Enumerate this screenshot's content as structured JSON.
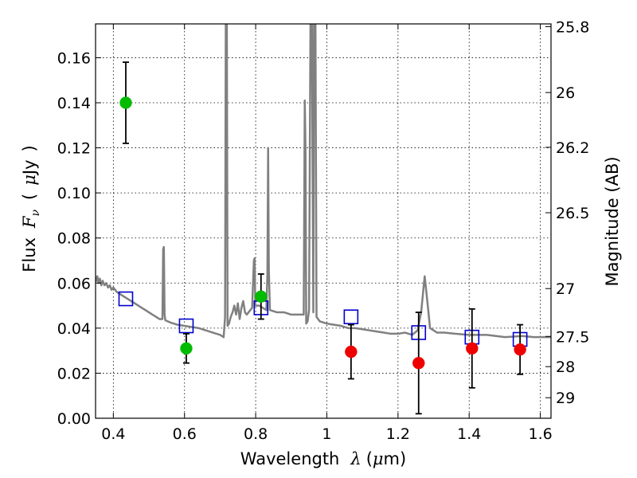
{
  "chart_data": {
    "type": "scatter",
    "title": "",
    "xlabel": {
      "prefix": "Wavelength",
      "symbol": "λ",
      "unit_open": "(",
      "unit_mu": "μ",
      "unit_rest": "m)"
    },
    "ylabel": {
      "prefix": "Flux",
      "symbol": "F",
      "subscript": "ν",
      "unit_open": "(",
      "unit_mu": "μ",
      "unit_rest": "Jy",
      "unit_close": ")"
    },
    "y2label": "Magnitude (AB)",
    "xlim": [
      0.35,
      1.63
    ],
    "ylim": [
      0.0,
      0.175
    ],
    "xticks": [
      0.4,
      0.6,
      0.8,
      1.0,
      1.2,
      1.4,
      1.6
    ],
    "xtick_labels": [
      "0.4",
      "0.6",
      "0.8",
      "1",
      "1.2",
      "1.4",
      "1.6"
    ],
    "yticks": [
      0.0,
      0.02,
      0.04,
      0.06,
      0.08,
      0.1,
      0.12,
      0.14,
      0.16
    ],
    "ytick_labels": [
      "0.00",
      "0.02",
      "0.04",
      "0.06",
      "0.08",
      "0.10",
      "0.12",
      "0.14",
      "0.16"
    ],
    "y2ticks": [
      {
        "mag": 25.8,
        "label": "25.8"
      },
      {
        "mag": 26.0,
        "label": "26"
      },
      {
        "mag": 26.2,
        "label": "26.2"
      },
      {
        "mag": 26.5,
        "label": "26.5"
      },
      {
        "mag": 27.0,
        "label": "27"
      },
      {
        "mag": 27.5,
        "label": "27.5"
      },
      {
        "mag": 28.0,
        "label": "28"
      },
      {
        "mag": 29.0,
        "label": "29"
      }
    ],
    "grid": true,
    "colors": {
      "model": "#808080",
      "green": "#00bb00",
      "red": "#ee0000",
      "square": "#0000cc",
      "error": "#000000"
    },
    "series": [
      {
        "kind": "model_spectrum",
        "points": [
          [
            0.35,
            0.063
          ],
          [
            0.352,
            0.061
          ],
          [
            0.355,
            0.063
          ],
          [
            0.358,
            0.06
          ],
          [
            0.362,
            0.062
          ],
          [
            0.366,
            0.059
          ],
          [
            0.37,
            0.061
          ],
          [
            0.375,
            0.059
          ],
          [
            0.38,
            0.06
          ],
          [
            0.385,
            0.058
          ],
          [
            0.39,
            0.059
          ],
          [
            0.395,
            0.057
          ],
          [
            0.4,
            0.058
          ],
          [
            0.41,
            0.056
          ],
          [
            0.42,
            0.055
          ],
          [
            0.43,
            0.054
          ],
          [
            0.44,
            0.053
          ],
          [
            0.45,
            0.052
          ],
          [
            0.46,
            0.051
          ],
          [
            0.47,
            0.05
          ],
          [
            0.48,
            0.049
          ],
          [
            0.49,
            0.048
          ],
          [
            0.5,
            0.047
          ],
          [
            0.51,
            0.046
          ],
          [
            0.52,
            0.045
          ],
          [
            0.53,
            0.044
          ],
          [
            0.538,
            0.044
          ],
          [
            0.54,
            0.075
          ],
          [
            0.542,
            0.076
          ],
          [
            0.544,
            0.046
          ],
          [
            0.546,
            0.0435
          ],
          [
            0.56,
            0.0425
          ],
          [
            0.58,
            0.0415
          ],
          [
            0.6,
            0.041
          ],
          [
            0.62,
            0.0405
          ],
          [
            0.64,
            0.04
          ],
          [
            0.66,
            0.039
          ],
          [
            0.68,
            0.038
          ],
          [
            0.7,
            0.037
          ],
          [
            0.71,
            0.036
          ],
          [
            0.714,
            0.045
          ],
          [
            0.716,
            0.175
          ],
          [
            0.719,
            0.175
          ],
          [
            0.721,
            0.041
          ],
          [
            0.725,
            0.042
          ],
          [
            0.73,
            0.045
          ],
          [
            0.735,
            0.047
          ],
          [
            0.74,
            0.05
          ],
          [
            0.745,
            0.046
          ],
          [
            0.75,
            0.051
          ],
          [
            0.755,
            0.044
          ],
          [
            0.76,
            0.049
          ],
          [
            0.765,
            0.052
          ],
          [
            0.77,
            0.047
          ],
          [
            0.775,
            0.046
          ],
          [
            0.78,
            0.047
          ],
          [
            0.785,
            0.048
          ],
          [
            0.79,
            0.049
          ],
          [
            0.795,
            0.07
          ],
          [
            0.797,
            0.071
          ],
          [
            0.799,
            0.05
          ],
          [
            0.81,
            0.05
          ],
          [
            0.82,
            0.049
          ],
          [
            0.83,
            0.048
          ],
          [
            0.833,
            0.064
          ],
          [
            0.835,
            0.12
          ],
          [
            0.837,
            0.066
          ],
          [
            0.84,
            0.048
          ],
          [
            0.86,
            0.047
          ],
          [
            0.88,
            0.047
          ],
          [
            0.9,
            0.046
          ],
          [
            0.92,
            0.046
          ],
          [
            0.935,
            0.046
          ],
          [
            0.938,
            0.141
          ],
          [
            0.94,
            0.12
          ],
          [
            0.942,
            0.042
          ],
          [
            0.946,
            0.043
          ],
          [
            0.95,
            0.048
          ],
          [
            0.954,
            0.175
          ],
          [
            0.958,
            0.175
          ],
          [
            0.962,
            0.047
          ],
          [
            0.964,
            0.175
          ],
          [
            0.968,
            0.175
          ],
          [
            0.971,
            0.045
          ],
          [
            0.98,
            0.043
          ],
          [
            1.0,
            0.042
          ],
          [
            1.02,
            0.0415
          ],
          [
            1.04,
            0.041
          ],
          [
            1.06,
            0.04
          ],
          [
            1.08,
            0.04
          ],
          [
            1.1,
            0.0395
          ],
          [
            1.12,
            0.039
          ],
          [
            1.14,
            0.0385
          ],
          [
            1.16,
            0.038
          ],
          [
            1.18,
            0.0375
          ],
          [
            1.2,
            0.0375
          ],
          [
            1.22,
            0.038
          ],
          [
            1.24,
            0.037
          ],
          [
            1.255,
            0.039
          ],
          [
            1.265,
            0.047
          ],
          [
            1.275,
            0.063
          ],
          [
            1.285,
            0.048
          ],
          [
            1.29,
            0.04
          ],
          [
            1.31,
            0.038
          ],
          [
            1.33,
            0.038
          ],
          [
            1.36,
            0.0375
          ],
          [
            1.4,
            0.037
          ],
          [
            1.45,
            0.037
          ],
          [
            1.5,
            0.036
          ],
          [
            1.55,
            0.0365
          ],
          [
            1.58,
            0.036
          ],
          [
            1.63,
            0.036
          ]
        ]
      },
      {
        "kind": "green_points",
        "points": [
          {
            "x": 0.435,
            "y": 0.14,
            "err": 0.018
          },
          {
            "x": 0.605,
            "y": 0.031,
            "err": 0.0065
          },
          {
            "x": 0.815,
            "y": 0.054,
            "err": 0.01
          }
        ]
      },
      {
        "kind": "red_points",
        "points": [
          {
            "x": 1.068,
            "y": 0.0295,
            "err": 0.012
          },
          {
            "x": 1.258,
            "y": 0.0245,
            "err": 0.0225
          },
          {
            "x": 1.408,
            "y": 0.031,
            "err": 0.0175
          },
          {
            "x": 1.543,
            "y": 0.0305,
            "err": 0.011
          }
        ]
      },
      {
        "kind": "model_squares",
        "points": [
          {
            "x": 0.435,
            "y": 0.053
          },
          {
            "x": 0.605,
            "y": 0.041
          },
          {
            "x": 0.815,
            "y": 0.049
          },
          {
            "x": 1.068,
            "y": 0.045
          },
          {
            "x": 1.258,
            "y": 0.038
          },
          {
            "x": 1.408,
            "y": 0.036
          },
          {
            "x": 1.543,
            "y": 0.035
          }
        ]
      }
    ]
  }
}
